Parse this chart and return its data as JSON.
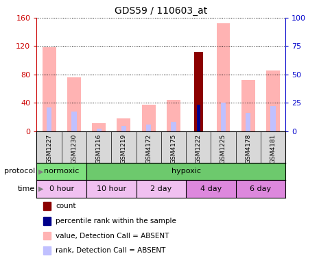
{
  "title": "GDS59 / 110603_at",
  "samples": [
    "GSM1227",
    "GSM1230",
    "GSM1216",
    "GSM1219",
    "GSM4172",
    "GSM4175",
    "GSM1222",
    "GSM1225",
    "GSM4178",
    "GSM4181"
  ],
  "value_absent": [
    118,
    76,
    12,
    18,
    38,
    44,
    null,
    152,
    72,
    86
  ],
  "rank_absent": [
    34,
    28,
    4,
    8,
    10,
    14,
    null,
    40,
    26,
    36
  ],
  "count_value": [
    null,
    null,
    null,
    null,
    null,
    null,
    112,
    null,
    null,
    null
  ],
  "percentile_blue": [
    null,
    null,
    null,
    null,
    null,
    null,
    38,
    null,
    null,
    null
  ],
  "ylim_left": [
    0,
    160
  ],
  "ylim_right": [
    0,
    100
  ],
  "yticks_left": [
    0,
    40,
    80,
    120,
    160
  ],
  "yticks_right": [
    0,
    25,
    50,
    75,
    100
  ],
  "color_value_absent": "#FFB3B3",
  "color_rank_absent": "#C0C0FF",
  "color_count": "#8B0000",
  "color_percentile": "#00008B",
  "protocol_color_normoxic": "#7EE07E",
  "protocol_color_hypoxic": "#6DC96D",
  "time_color_0h": "#F0C0F0",
  "time_color_10h": "#F0C0F0",
  "time_color_2d": "#F0C0F0",
  "time_color_4d": "#DD88DD",
  "time_color_6d": "#DD88DD",
  "axis_left_color": "#CC0000",
  "axis_right_color": "#0000CC",
  "legend_items": [
    {
      "label": "count",
      "color": "#8B0000"
    },
    {
      "label": "percentile rank within the sample",
      "color": "#00008B"
    },
    {
      "label": "value, Detection Call = ABSENT",
      "color": "#FFB3B3"
    },
    {
      "label": "rank, Detection Call = ABSENT",
      "color": "#C0C0FF"
    }
  ]
}
